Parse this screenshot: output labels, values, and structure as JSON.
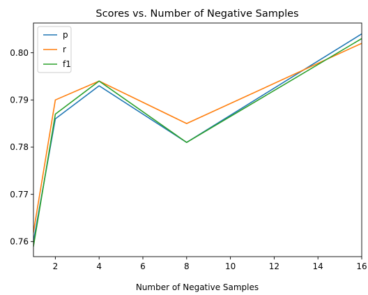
{
  "chart_data": {
    "type": "line",
    "title": "Scores vs. Number of Negative Samples",
    "xlabel": "Number of Negative Samples",
    "ylabel": "",
    "x": [
      1,
      2,
      4,
      8,
      16
    ],
    "series": [
      {
        "name": "p",
        "color": "#1f77b4",
        "values": [
          0.76,
          0.786,
          0.793,
          0.781,
          0.804
        ]
      },
      {
        "name": "r",
        "color": "#ff7f0e",
        "values": [
          0.762,
          0.79,
          0.794,
          0.785,
          0.802
        ]
      },
      {
        "name": "f1",
        "color": "#2ca02c",
        "values": [
          0.759,
          0.787,
          0.794,
          0.781,
          0.803
        ]
      }
    ],
    "xlim": [
      1,
      16
    ],
    "ylim": [
      0.7568,
      0.8063
    ],
    "xticks": [
      2,
      4,
      6,
      8,
      10,
      12,
      14,
      16
    ],
    "xtick_labels": [
      "2",
      "4",
      "6",
      "8",
      "10",
      "12",
      "14",
      "16"
    ],
    "yticks": [
      0.76,
      0.77,
      0.78,
      0.79,
      0.8
    ],
    "ytick_labels": [
      "0.76",
      "0.77",
      "0.78",
      "0.79",
      "0.80"
    ],
    "grid": false,
    "legend_position": "top-left"
  }
}
